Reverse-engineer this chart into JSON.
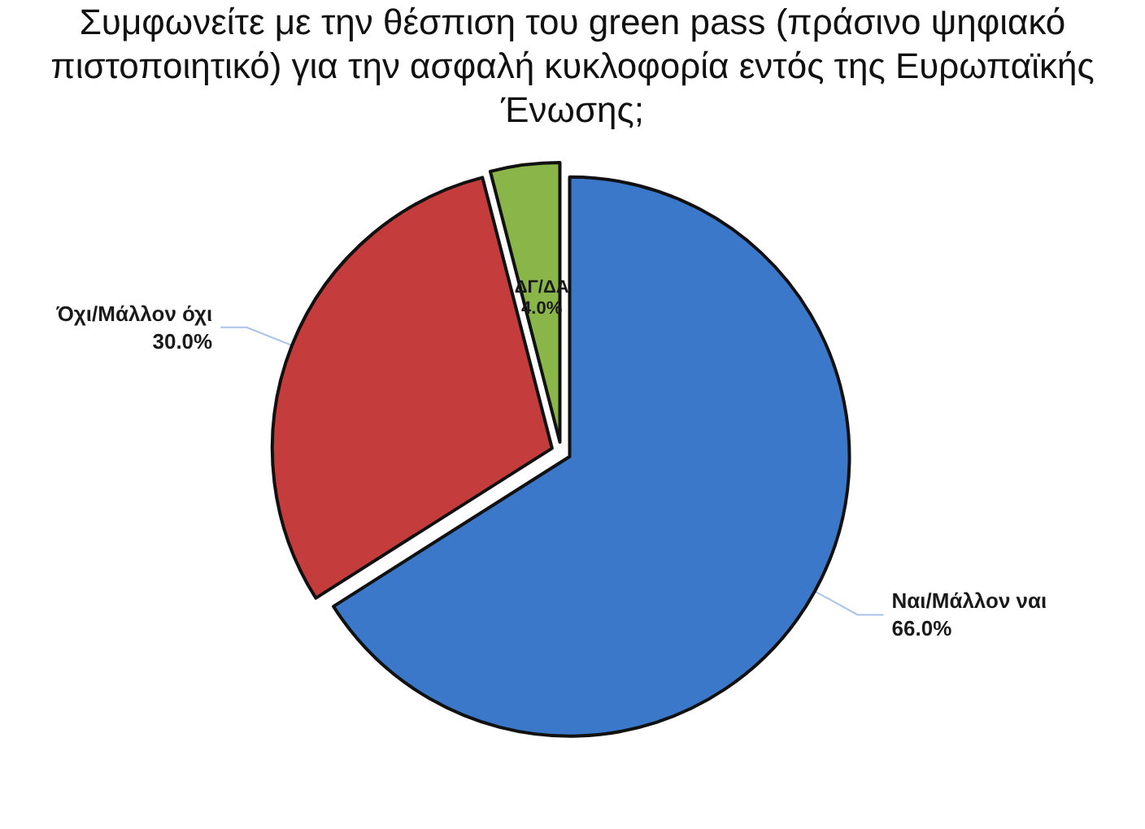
{
  "chart_data": {
    "type": "pie",
    "title": "Συμφωνείτε με την θέσπιση του green pass (πράσινο ψηφιακό πιστοποιητικό) για την ασφαλή κυκλοφορία εντός της Ευρωπαϊκής Ένωσης;",
    "categories": [
      "Ναι/Μάλλον ναι",
      "Όχι/Μάλλον όχι",
      "ΔΓ/ΔΑ"
    ],
    "values": [
      66.0,
      30.0,
      4.0
    ],
    "colors": [
      "#3b78c9",
      "#c43c3c",
      "#8ab548"
    ],
    "value_labels": [
      "66.0%",
      "30.0%",
      "4.0%"
    ]
  }
}
